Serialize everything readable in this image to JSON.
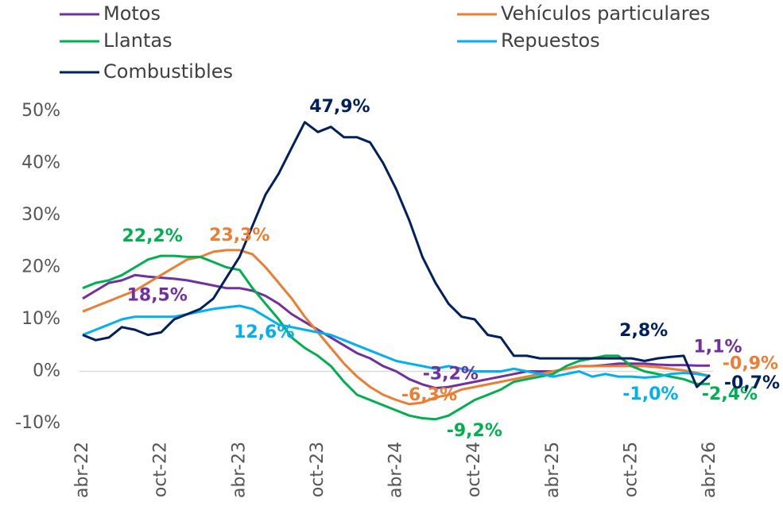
{
  "chart_data": {
    "type": "line",
    "categories": [
      "abr-22",
      null,
      null,
      null,
      null,
      null,
      "oct-22",
      null,
      null,
      null,
      null,
      null,
      "abr-23",
      null,
      null,
      null,
      null,
      null,
      "oct-23",
      null,
      null,
      null,
      null,
      null,
      "abr-24",
      null,
      null,
      null,
      null,
      null,
      "oct-24",
      null,
      null,
      null,
      null,
      null,
      "abr-25",
      null,
      null,
      null,
      null,
      null,
      "oct-25",
      null,
      null,
      null,
      null,
      null,
      "abr-26"
    ],
    "ylim": [
      -10,
      50
    ],
    "yticks": [
      {
        "value": -10,
        "label": "-10%"
      },
      {
        "value": 0,
        "label": "0%"
      },
      {
        "value": 10,
        "label": "10%"
      },
      {
        "value": 20,
        "label": "20%"
      },
      {
        "value": 30,
        "label": "30%"
      },
      {
        "value": 40,
        "label": "40%"
      },
      {
        "value": 50,
        "label": "50%"
      }
    ],
    "series": [
      {
        "name": "Motos",
        "color": "#7030a0",
        "values": [
          14,
          15.5,
          17,
          17.5,
          18.5,
          18.2,
          18,
          17.8,
          17.5,
          17,
          16.5,
          16,
          16,
          15.5,
          14.5,
          13,
          11,
          9.5,
          8,
          6.5,
          5,
          3.5,
          2.5,
          1,
          0,
          -1.5,
          -2.5,
          -3.2,
          -3,
          -2.5,
          -2,
          -1.5,
          -1,
          -0.5,
          0,
          0,
          0,
          0.5,
          1,
          1,
          1.2,
          1.5,
          1.5,
          1.5,
          1.3,
          1.2,
          1.2,
          1.1,
          1.1
        ],
        "value_labels": [
          null,
          null,
          null,
          null,
          "18,5%",
          null,
          null,
          null,
          null,
          null,
          null,
          null,
          null,
          null,
          null,
          null,
          null,
          null,
          null,
          null,
          null,
          null,
          null,
          null,
          null,
          null,
          null,
          "-3,2%",
          null,
          null,
          null,
          null,
          null,
          null,
          null,
          null,
          null,
          null,
          null,
          null,
          null,
          null,
          null,
          null,
          null,
          null,
          null,
          null,
          "1,1%"
        ]
      },
      {
        "name": "Vehículos particulares",
        "color": "#ed7d31",
        "values": [
          11.5,
          12.5,
          13.5,
          14.5,
          15.5,
          17,
          18.5,
          20,
          21.5,
          22,
          23,
          23.3,
          23.3,
          22.5,
          20,
          17,
          14,
          10.5,
          7.5,
          4.5,
          1.5,
          -1,
          -3,
          -4.5,
          -5.5,
          -6.3,
          -6,
          -5,
          -4.5,
          -3.5,
          -3,
          -2.5,
          -2,
          -1.5,
          -1,
          -0.5,
          0,
          0.5,
          1,
          1,
          1,
          1,
          1,
          1,
          0.8,
          0.5,
          0.2,
          -0.3,
          -0.9
        ],
        "value_labels": [
          null,
          null,
          null,
          null,
          null,
          null,
          null,
          null,
          null,
          null,
          null,
          null,
          "23,3%",
          null,
          null,
          null,
          null,
          null,
          null,
          null,
          null,
          null,
          null,
          null,
          null,
          "-6,3%",
          null,
          null,
          null,
          null,
          null,
          null,
          null,
          null,
          null,
          null,
          null,
          null,
          null,
          null,
          null,
          null,
          null,
          null,
          null,
          null,
          null,
          null,
          "-0,9%"
        ]
      },
      {
        "name": "Llantas",
        "color": "#00b050",
        "values": [
          16,
          17,
          17.5,
          18.5,
          20,
          21.5,
          22.2,
          22.2,
          22,
          22,
          21,
          20,
          19.5,
          16,
          13,
          10,
          6.5,
          4.5,
          3,
          1,
          -2,
          -4.5,
          -5.5,
          -6.5,
          -7.5,
          -8.5,
          -9,
          -9.2,
          -8.5,
          -7,
          -5.5,
          -4.5,
          -3.5,
          -2,
          -1.5,
          -1,
          -0.5,
          1,
          2,
          2.5,
          3,
          3,
          1,
          0,
          -0.5,
          -1,
          -1.5,
          -2.4,
          -2.4
        ],
        "value_labels": [
          null,
          null,
          null,
          null,
          null,
          null,
          "22,2%",
          null,
          null,
          null,
          null,
          null,
          null,
          null,
          null,
          null,
          null,
          null,
          null,
          null,
          null,
          null,
          null,
          null,
          null,
          null,
          null,
          "-9,2%",
          null,
          null,
          null,
          null,
          null,
          null,
          null,
          null,
          null,
          null,
          null,
          null,
          null,
          null,
          null,
          null,
          null,
          null,
          null,
          null,
          "-2,4%"
        ]
      },
      {
        "name": "Repuestos",
        "color": "#00b0f0",
        "values": [
          7,
          8,
          9,
          10,
          10.5,
          10.5,
          10.5,
          10.5,
          11,
          11.5,
          12,
          12.3,
          12.6,
          12,
          10.5,
          9,
          8.5,
          8,
          7.5,
          7,
          6,
          5,
          4,
          3,
          2,
          1.5,
          1,
          0.5,
          1,
          0.5,
          0,
          0,
          0,
          0.5,
          0,
          -0.5,
          -1,
          -0.5,
          0,
          -1,
          -0.5,
          -1,
          -1,
          -1.2,
          -1,
          -0.5,
          -0.3,
          -0.5,
          -0.9
        ],
        "value_labels": [
          null,
          null,
          null,
          null,
          null,
          null,
          null,
          null,
          null,
          null,
          null,
          null,
          "12,6%",
          null,
          null,
          null,
          null,
          null,
          null,
          null,
          null,
          null,
          null,
          null,
          null,
          null,
          null,
          null,
          null,
          null,
          null,
          null,
          null,
          null,
          null,
          null,
          null,
          null,
          null,
          null,
          null,
          null,
          "-1,0%",
          null,
          null,
          null,
          null,
          null,
          null
        ]
      },
      {
        "name": "Combustibles",
        "color": "#002060",
        "values": [
          7,
          6,
          6.5,
          8.5,
          8,
          7,
          7.5,
          10,
          11,
          12,
          14,
          18,
          22,
          28,
          34,
          38,
          43,
          47.9,
          46,
          47,
          45,
          45,
          44,
          40,
          35,
          29,
          22,
          17,
          13,
          10.5,
          10,
          7,
          6.5,
          3,
          3,
          2.5,
          2.5,
          2.5,
          2.5,
          2.5,
          2.5,
          2.5,
          2.5,
          2,
          2.5,
          2.8,
          3,
          -3,
          -0.7
        ],
        "value_labels": [
          null,
          null,
          null,
          null,
          null,
          null,
          null,
          null,
          null,
          null,
          null,
          null,
          null,
          null,
          null,
          null,
          null,
          "47,9%",
          null,
          null,
          null,
          null,
          null,
          null,
          null,
          null,
          null,
          null,
          null,
          null,
          null,
          null,
          null,
          null,
          null,
          null,
          null,
          null,
          null,
          null,
          null,
          null,
          null,
          null,
          null,
          "2,8%",
          null,
          null,
          "-0,7%"
        ]
      }
    ]
  }
}
